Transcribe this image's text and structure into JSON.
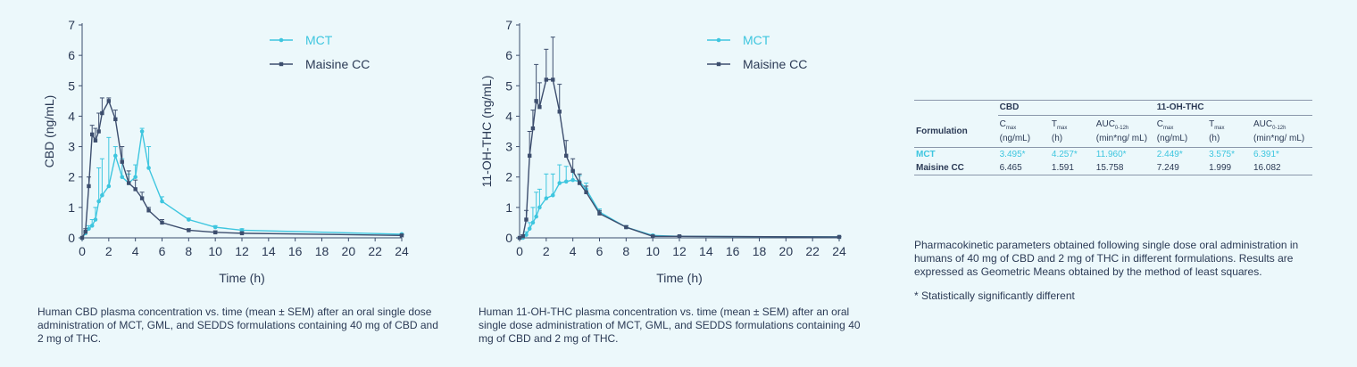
{
  "colors": {
    "mct": "#3ec6df",
    "maisine": "#3d4e6e",
    "text": "#2b3a55",
    "background": "#ecf8fb"
  },
  "chart_data": [
    {
      "type": "line",
      "title": "",
      "xlabel": "Time (h)",
      "ylabel": "CBD (ng/mL)",
      "xlim": [
        0,
        24
      ],
      "ylim": [
        0,
        7
      ],
      "xticks": [
        0,
        2,
        4,
        6,
        8,
        10,
        12,
        14,
        16,
        18,
        20,
        22,
        24
      ],
      "yticks": [
        0,
        1,
        2,
        3,
        4,
        5,
        6,
        7
      ],
      "legend": "top-right",
      "series": [
        {
          "name": "MCT",
          "x": [
            0,
            0.25,
            0.5,
            0.75,
            1,
            1.25,
            1.5,
            2,
            2.5,
            3,
            3.5,
            4,
            4.5,
            5,
            6,
            8,
            10,
            12,
            24
          ],
          "y": [
            0,
            0.15,
            0.3,
            0.4,
            0.6,
            1.2,
            1.4,
            1.7,
            2.7,
            2.0,
            1.8,
            2.0,
            3.5,
            2.3,
            1.2,
            0.6,
            0.35,
            0.25,
            0.12
          ],
          "err": [
            0,
            0.05,
            0.1,
            0.2,
            0.4,
            1.1,
            1.2,
            1.6,
            0.3,
            0.6,
            0.3,
            0.4,
            0.1,
            0.7,
            0.15,
            0.05,
            0.05,
            0.05,
            0.02
          ]
        },
        {
          "name": "Maisine CC",
          "x": [
            0,
            0.25,
            0.5,
            0.75,
            1,
            1.25,
            1.5,
            2,
            2.5,
            3,
            3.5,
            4,
            4.5,
            5,
            6,
            8,
            10,
            12,
            24
          ],
          "y": [
            0,
            0.2,
            1.7,
            3.4,
            3.2,
            3.5,
            4.1,
            4.5,
            3.9,
            2.5,
            1.8,
            1.6,
            1.3,
            0.9,
            0.5,
            0.25,
            0.18,
            0.15,
            0.08
          ],
          "err": [
            0,
            0.1,
            0.3,
            0.3,
            0.4,
            0.6,
            0.5,
            0.1,
            0.3,
            0.5,
            0.4,
            0.3,
            0.2,
            0.1,
            0.1,
            0.05,
            0.05,
            0.05,
            0.02
          ]
        }
      ]
    },
    {
      "type": "line",
      "title": "",
      "xlabel": "Time (h)",
      "ylabel": "11-OH-THC (ng/mL)",
      "xlim": [
        0,
        24
      ],
      "ylim": [
        0,
        7
      ],
      "xticks": [
        0,
        2,
        4,
        6,
        8,
        10,
        12,
        14,
        16,
        18,
        20,
        22,
        24
      ],
      "yticks": [
        0,
        1,
        2,
        3,
        4,
        5,
        6,
        7
      ],
      "legend": "top-right",
      "series": [
        {
          "name": "MCT",
          "x": [
            0,
            0.25,
            0.5,
            0.75,
            1,
            1.25,
            1.5,
            2,
            2.5,
            3,
            3.5,
            4,
            4.5,
            5,
            6,
            8,
            10,
            12,
            24
          ],
          "y": [
            0,
            0,
            0.1,
            0.3,
            0.5,
            0.7,
            1.0,
            1.3,
            1.4,
            1.8,
            1.85,
            1.9,
            1.85,
            1.6,
            0.85,
            0.35,
            0.08,
            0.05,
            0.03
          ],
          "err": [
            0,
            0,
            0.1,
            0.2,
            0.5,
            0.8,
            0.6,
            0.8,
            0.7,
            0.6,
            0.5,
            0.3,
            0.2,
            0.2,
            0.1,
            0.05,
            0.03,
            0.02,
            0.01
          ]
        },
        {
          "name": "Maisine CC",
          "x": [
            0,
            0.25,
            0.5,
            0.75,
            1,
            1.25,
            1.5,
            2,
            2.5,
            3,
            3.5,
            4,
            4.5,
            5,
            6,
            8,
            10,
            12,
            24
          ],
          "y": [
            0,
            0.05,
            0.6,
            2.7,
            3.6,
            4.5,
            4.3,
            5.2,
            5.2,
            4.15,
            2.7,
            2.2,
            1.8,
            1.5,
            0.8,
            0.35,
            0.05,
            0.05,
            0.03
          ],
          "err": [
            0,
            0.05,
            0.3,
            0.8,
            0.6,
            1.2,
            0.8,
            1.0,
            1.4,
            0.9,
            0.5,
            0.4,
            0.3,
            0.2,
            0.1,
            0.05,
            0.03,
            0.02,
            0.01
          ]
        }
      ]
    }
  ],
  "captions": {
    "cbd": "Human CBD plasma concentration vs. time (mean ± SEM) after an oral single dose administration of MCT, GML, and SEDDS formulations containing 40 mg of CBD and 2 mg of THC.",
    "thc": "Human 11-OH-THC plasma concentration vs. time (mean ± SEM) after an oral single dose administration of MCT, GML, and SEDDS formulations containing 40 mg of CBD and 2 mg of THC."
  },
  "table": {
    "group_cbd": "CBD",
    "group_thc": "11-OH-THC",
    "col_formulation": "Formulation",
    "p_cmax": "C",
    "p_cmax_sub": "max",
    "p_cmax_unit": "(ng/mL)",
    "p_tmax": "T",
    "p_tmax_sub": "max",
    "p_tmax_unit": "(h)",
    "p_auc": "AUC",
    "p_auc_sub": "0-12h",
    "p_auc_unit": "(min*ng/ mL)",
    "rows": [
      {
        "name": "MCT",
        "values": [
          "3.495*",
          "4.257*",
          "11.960*",
          "2.449*",
          "3.575*",
          "6.391*"
        ]
      },
      {
        "name": "Maisine CC",
        "values": [
          "6.465",
          "1.591",
          "15.758",
          "7.249",
          "1.999",
          "16.082"
        ]
      }
    ]
  },
  "notes": {
    "description": "Pharmacokinetic parameters obtained following single dose oral administration in humans of 40 mg of CBD and 2 mg of THC in different formulations. Results are expressed as Geometric Means obtained by the method of least squares.",
    "footnote": "* Statistically significantly different"
  }
}
